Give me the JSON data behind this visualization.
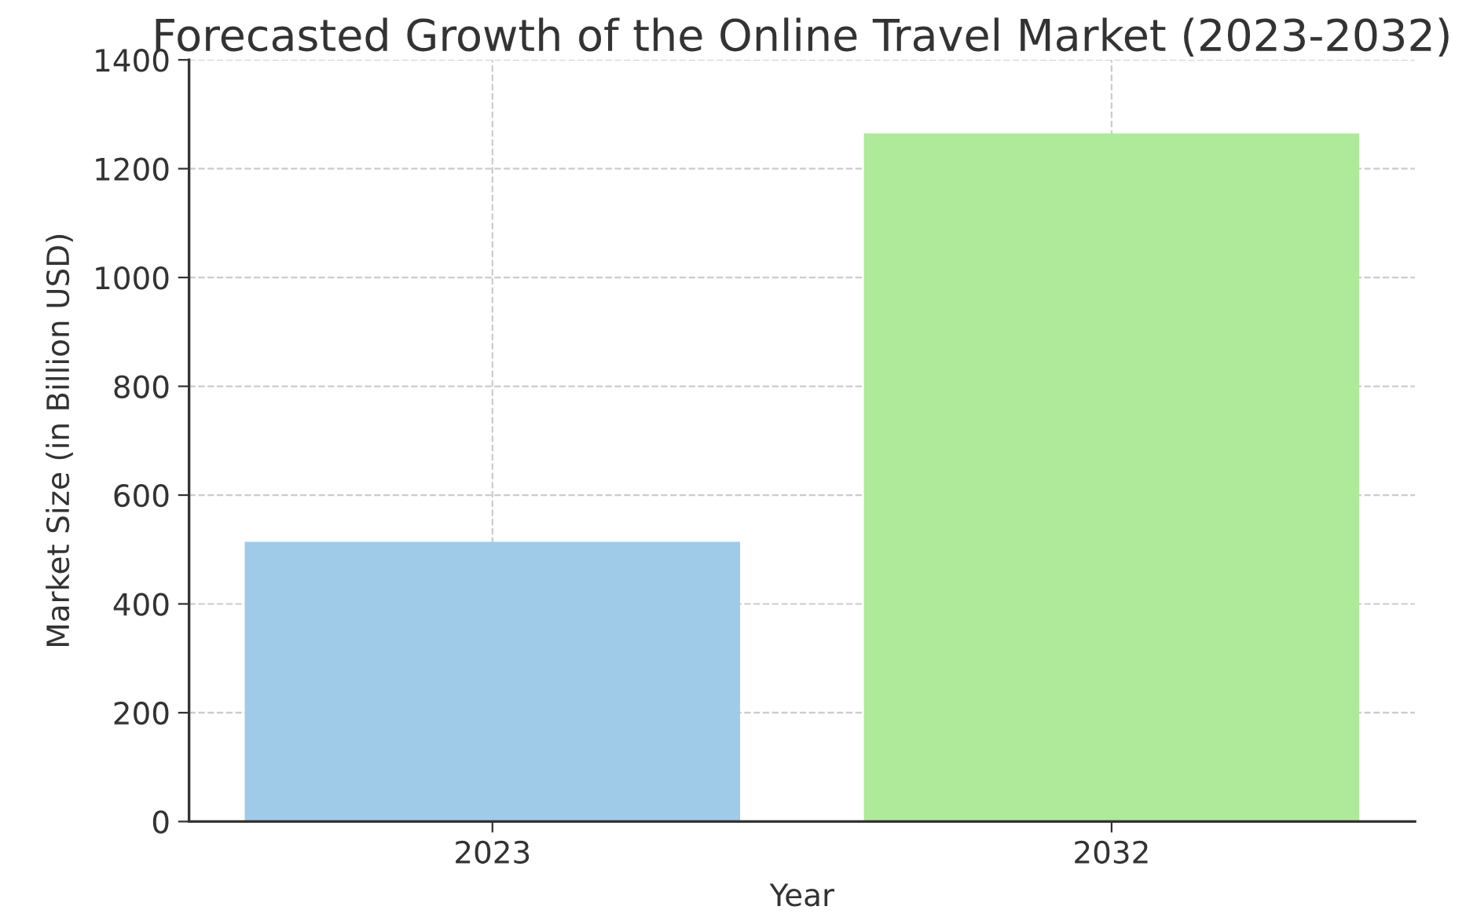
{
  "chart_data": {
    "type": "bar",
    "title": "Forecasted Growth of the Online Travel Market (2023-2032)",
    "xlabel": "Year",
    "ylabel": "Market Size (in Billion USD)",
    "categories": [
      "2023",
      "2032"
    ],
    "values": [
      514,
      1265
    ],
    "colors": [
      "#a0cbe8",
      "#aeea9a"
    ],
    "ylim": [
      0,
      1400
    ],
    "yticks": [
      0,
      200,
      400,
      600,
      800,
      1000,
      1200,
      1400
    ],
    "grid": true,
    "line_style": "dashed"
  }
}
